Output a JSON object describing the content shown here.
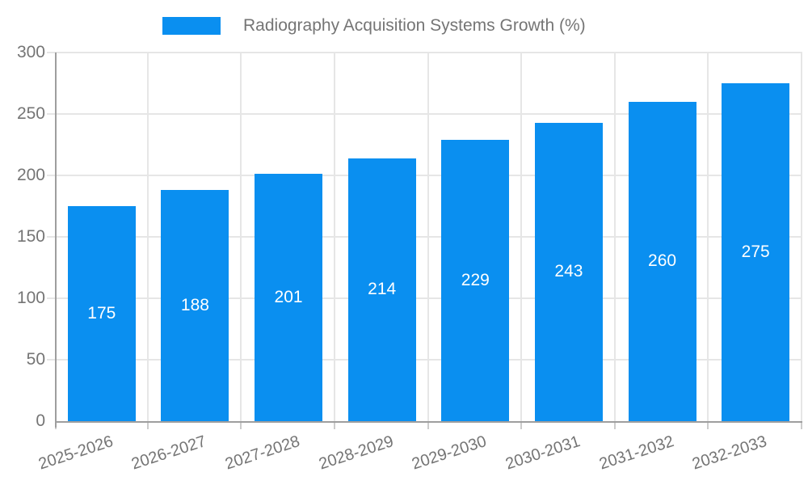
{
  "legend": {
    "label": "Radiography Acquisition Systems Growth (%)"
  },
  "chart_data": {
    "type": "bar",
    "title": "Radiography Acquisition Systems Growth (%)",
    "categories": [
      "2025-2026",
      "2026-2027",
      "2027-2028",
      "2028-2029",
      "2029-2030",
      "2030-2031",
      "2031-2032",
      "2032-2033"
    ],
    "values": [
      175,
      188,
      201,
      214,
      229,
      243,
      260,
      275
    ],
    "xlabel": "",
    "ylabel": "",
    "ylim": [
      0,
      300
    ],
    "y_ticks": [
      0,
      50,
      100,
      150,
      200,
      250,
      300
    ],
    "grid": true,
    "legend_position": "top",
    "bar_color": "#0a8ff0",
    "bar_label_color": "#ffffff",
    "axis_text_color": "#757575",
    "grid_color": "#e6e6e6",
    "axis_line_color": "#9e9e9e"
  }
}
